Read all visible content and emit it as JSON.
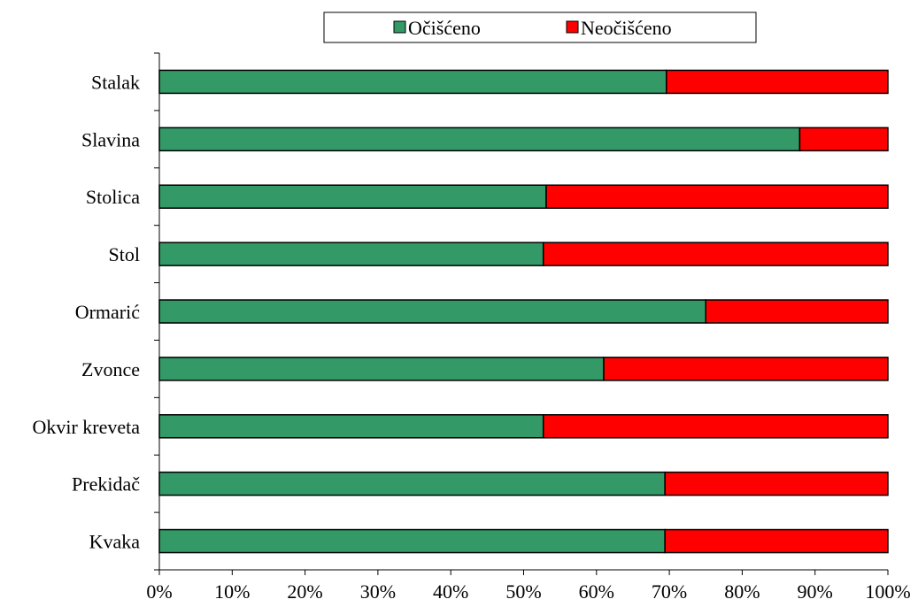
{
  "chart_data": {
    "type": "bar",
    "orientation": "horizontal",
    "stacked": true,
    "percent_stacked": true,
    "categories": [
      "Stalak",
      "Slavina",
      "Stolica",
      "Stol",
      "Ormarić",
      "Zvonce",
      "Okvir kreveta",
      "Prekidač",
      "Kvaka"
    ],
    "series": [
      {
        "name": "Očišćeno",
        "color": "#339966",
        "values": [
          69.6,
          87.9,
          53.1,
          52.7,
          75.0,
          61.0,
          52.7,
          69.4,
          69.4
        ]
      },
      {
        "name": "Neočišćeno",
        "color": "#ff0000",
        "values": [
          30.4,
          12.1,
          46.9,
          47.3,
          25.0,
          39.0,
          47.3,
          30.6,
          30.6
        ]
      }
    ],
    "xlim": [
      0,
      100
    ],
    "x_ticks": [
      "0%",
      "10%",
      "20%",
      "30%",
      "40%",
      "50%",
      "60%",
      "70%",
      "80%",
      "90%",
      "100%"
    ],
    "title": "",
    "xlabel": "",
    "ylabel": "",
    "legend": {
      "position": "top",
      "entries": [
        "Očišćeno",
        "Neočišćeno"
      ]
    },
    "grid": false
  }
}
